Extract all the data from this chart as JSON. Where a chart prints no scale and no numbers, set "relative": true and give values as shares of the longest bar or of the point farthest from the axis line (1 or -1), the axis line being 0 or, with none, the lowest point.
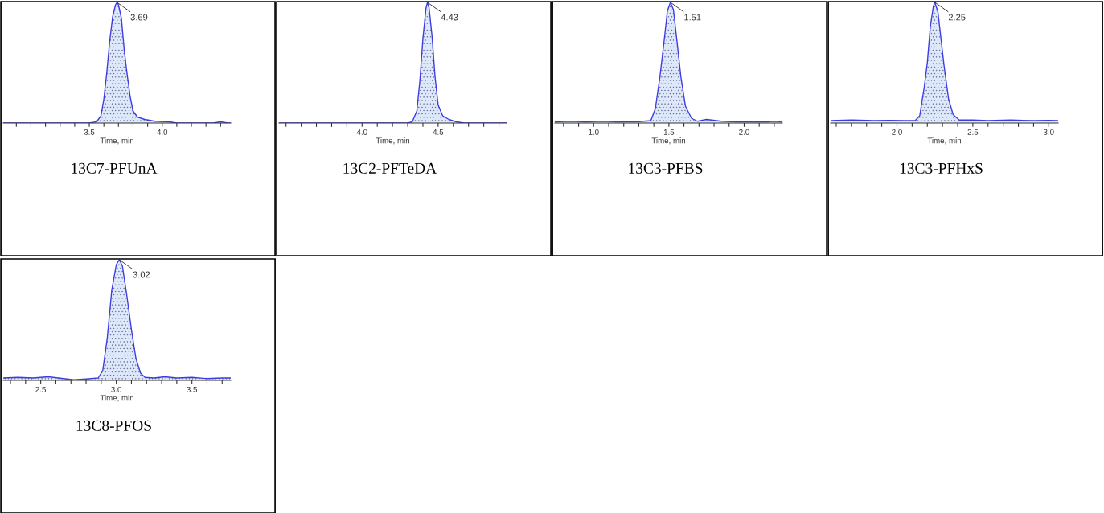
{
  "chart_data": [
    {
      "type": "area",
      "title": "13C7-PFUnA",
      "xlabel": "Time, min",
      "relative": true,
      "color": "#3c3ce0",
      "xlim": [
        2.91,
        4.47
      ],
      "xticks": [
        {
          "value": 3.0,
          "label": null
        },
        {
          "value": 3.1,
          "label": null
        },
        {
          "value": 3.2,
          "label": null
        },
        {
          "value": 3.3,
          "label": null
        },
        {
          "value": 3.4,
          "label": null
        },
        {
          "value": 3.5,
          "label": "3.5"
        },
        {
          "value": 3.6,
          "label": null
        },
        {
          "value": 3.7,
          "label": null
        },
        {
          "value": 3.8,
          "label": null
        },
        {
          "value": 3.9,
          "label": null
        },
        {
          "value": 4.0,
          "label": "4.0"
        },
        {
          "value": 4.1,
          "label": null
        },
        {
          "value": 4.2,
          "label": null
        },
        {
          "value": 4.3,
          "label": null
        },
        {
          "value": 4.4,
          "label": null
        }
      ],
      "x": [
        2.91,
        3.5,
        3.55,
        3.58,
        3.6,
        3.62,
        3.64,
        3.66,
        3.68,
        3.69,
        3.7,
        3.72,
        3.74,
        3.76,
        3.78,
        3.8,
        3.83,
        3.88,
        3.95,
        4.05,
        4.1,
        4.35,
        4.4,
        4.45,
        4.47
      ],
      "values": [
        0,
        0,
        0.01,
        0.06,
        0.2,
        0.42,
        0.68,
        0.88,
        0.98,
        1,
        0.98,
        0.87,
        0.6,
        0.4,
        0.22,
        0.1,
        0.05,
        0.03,
        0.015,
        0.01,
        0,
        0,
        0.01,
        0,
        0
      ],
      "annotations": [
        {
          "text": "3.69",
          "x": 3.69,
          "y": 1
        }
      ]
    },
    {
      "type": "area",
      "title": "13C2-PFTeDA",
      "xlabel": "Time, min",
      "relative": true,
      "color": "#3c3ce0",
      "xlim": [
        3.454,
        4.95
      ],
      "xticks": [
        {
          "value": 3.5,
          "label": null
        },
        {
          "value": 3.6,
          "label": null
        },
        {
          "value": 3.7,
          "label": null
        },
        {
          "value": 3.8,
          "label": null
        },
        {
          "value": 3.9,
          "label": null
        },
        {
          "value": 4.0,
          "label": "4.0"
        },
        {
          "value": 4.1,
          "label": null
        },
        {
          "value": 4.2,
          "label": null
        },
        {
          "value": 4.3,
          "label": null
        },
        {
          "value": 4.4,
          "label": null
        },
        {
          "value": 4.5,
          "label": "4.5"
        },
        {
          "value": 4.6,
          "label": null
        },
        {
          "value": 4.7,
          "label": null
        },
        {
          "value": 4.8,
          "label": null
        },
        {
          "value": 4.9,
          "label": null
        }
      ],
      "x": [
        3.454,
        4.3,
        4.33,
        4.36,
        4.38,
        4.4,
        4.42,
        4.43,
        4.44,
        4.46,
        4.48,
        4.5,
        4.53,
        4.57,
        4.62,
        4.67,
        4.95
      ],
      "values": [
        0,
        0,
        0.01,
        0.1,
        0.35,
        0.7,
        0.95,
        1,
        0.96,
        0.72,
        0.38,
        0.15,
        0.06,
        0.03,
        0.01,
        0,
        0
      ],
      "annotations": [
        {
          "text": "4.43",
          "x": 4.43,
          "y": 1
        }
      ]
    },
    {
      "type": "area",
      "title": "13C3-PFBS",
      "xlabel": "Time, min",
      "relative": true,
      "color": "#3c3ce0",
      "xlim": [
        0.742,
        2.254
      ],
      "xticks": [
        {
          "value": 0.8,
          "label": null
        },
        {
          "value": 0.9,
          "label": null
        },
        {
          "value": 1.0,
          "label": "1.0"
        },
        {
          "value": 1.1,
          "label": null
        },
        {
          "value": 1.2,
          "label": null
        },
        {
          "value": 1.3,
          "label": null
        },
        {
          "value": 1.4,
          "label": null
        },
        {
          "value": 1.5,
          "label": "1.5"
        },
        {
          "value": 1.6,
          "label": null
        },
        {
          "value": 1.7,
          "label": null
        },
        {
          "value": 1.8,
          "label": null
        },
        {
          "value": 1.9,
          "label": null
        },
        {
          "value": 2.0,
          "label": "2.0"
        },
        {
          "value": 2.1,
          "label": null
        },
        {
          "value": 2.2,
          "label": null
        }
      ],
      "x": [
        0.742,
        0.85,
        0.95,
        1.05,
        1.15,
        1.3,
        1.38,
        1.41,
        1.44,
        1.47,
        1.49,
        1.51,
        1.53,
        1.55,
        1.58,
        1.61,
        1.65,
        1.69,
        1.75,
        1.85,
        1.95,
        2.05,
        2.15,
        2.2,
        2.254
      ],
      "values": [
        0.01,
        0.015,
        0.01,
        0.015,
        0.01,
        0.012,
        0.02,
        0.12,
        0.38,
        0.7,
        0.93,
        1,
        0.94,
        0.72,
        0.38,
        0.14,
        0.04,
        0.015,
        0.03,
        0.015,
        0.01,
        0.012,
        0.01,
        0.015,
        0.01
      ],
      "annotations": [
        {
          "text": "1.51",
          "x": 1.51,
          "y": 1
        }
      ]
    },
    {
      "type": "area",
      "title": "13C3-PFHxS",
      "xlabel": "Time, min",
      "relative": true,
      "color": "#3c3ce0",
      "xlim": [
        1.563,
        3.062
      ],
      "xticks": [
        {
          "value": 1.6,
          "label": null
        },
        {
          "value": 1.7,
          "label": null
        },
        {
          "value": 1.8,
          "label": null
        },
        {
          "value": 1.9,
          "label": null
        },
        {
          "value": 2.0,
          "label": "2.0"
        },
        {
          "value": 2.1,
          "label": null
        },
        {
          "value": 2.2,
          "label": null
        },
        {
          "value": 2.3,
          "label": null
        },
        {
          "value": 2.4,
          "label": null
        },
        {
          "value": 2.5,
          "label": "2.5"
        },
        {
          "value": 2.6,
          "label": null
        },
        {
          "value": 2.7,
          "label": null
        },
        {
          "value": 2.8,
          "label": null
        },
        {
          "value": 2.9,
          "label": null
        },
        {
          "value": 3.0,
          "label": "3.0"
        }
      ],
      "x": [
        1.563,
        1.7,
        1.85,
        1.95,
        2.05,
        2.12,
        2.15,
        2.18,
        2.2,
        2.22,
        2.24,
        2.25,
        2.27,
        2.29,
        2.31,
        2.34,
        2.37,
        2.41,
        2.5,
        2.6,
        2.75,
        2.9,
        3.0,
        3.062
      ],
      "values": [
        0.02,
        0.025,
        0.02,
        0.022,
        0.02,
        0.02,
        0.06,
        0.3,
        0.5,
        0.8,
        0.97,
        1,
        0.92,
        0.7,
        0.48,
        0.2,
        0.07,
        0.025,
        0.025,
        0.02,
        0.025,
        0.02,
        0.022,
        0.02
      ],
      "annotations": [
        {
          "text": "2.25",
          "x": 2.25,
          "y": 1
        }
      ]
    },
    {
      "type": "area",
      "title": "13C8-PFOS",
      "xlabel": "Time, min",
      "relative": true,
      "color": "#3c3ce0",
      "xlim": [
        2.252,
        3.757
      ],
      "xticks": [
        {
          "value": 2.3,
          "label": null
        },
        {
          "value": 2.4,
          "label": null
        },
        {
          "value": 2.5,
          "label": "2.5"
        },
        {
          "value": 2.6,
          "label": null
        },
        {
          "value": 2.7,
          "label": null
        },
        {
          "value": 2.8,
          "label": null
        },
        {
          "value": 2.9,
          "label": null
        },
        {
          "value": 3.0,
          "label": "3.0"
        },
        {
          "value": 3.1,
          "label": null
        },
        {
          "value": 3.2,
          "label": null
        },
        {
          "value": 3.3,
          "label": null
        },
        {
          "value": 3.4,
          "label": null
        },
        {
          "value": 3.5,
          "label": "3.5"
        },
        {
          "value": 3.6,
          "label": null
        },
        {
          "value": 3.7,
          "label": null
        }
      ],
      "x": [
        2.252,
        2.35,
        2.45,
        2.55,
        2.65,
        2.72,
        2.8,
        2.88,
        2.91,
        2.94,
        2.97,
        3.0,
        3.02,
        3.04,
        3.07,
        3.1,
        3.13,
        3.16,
        3.19,
        3.25,
        3.32,
        3.4,
        3.5,
        3.6,
        3.7,
        3.757
      ],
      "values": [
        0.02,
        0.025,
        0.02,
        0.03,
        0.015,
        0.005,
        0.012,
        0.02,
        0.08,
        0.35,
        0.75,
        0.96,
        1,
        0.95,
        0.7,
        0.42,
        0.18,
        0.06,
        0.025,
        0.02,
        0.03,
        0.02,
        0.025,
        0.015,
        0.02,
        0.02
      ],
      "annotations": [
        {
          "text": "3.02",
          "x": 3.02,
          "y": 1
        }
      ]
    }
  ]
}
